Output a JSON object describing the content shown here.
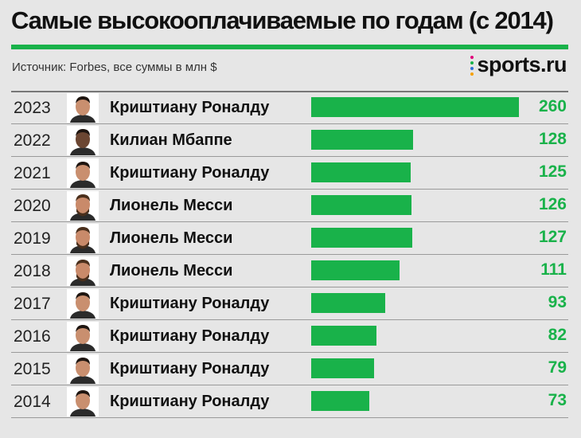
{
  "header": {
    "title": "Самые высокооплачиваемые по годам (с 2014)",
    "source": "Источник: Forbes, все суммы в млн $",
    "brand": "sports.ru"
  },
  "colors": {
    "accent": "#19b24a",
    "background": "#e6e6e6",
    "brand_dots": [
      "#e0007a",
      "#19b24a",
      "#2e6fd8",
      "#f5a000"
    ]
  },
  "chart_data": {
    "type": "bar",
    "orientation": "horizontal",
    "xlim": [
      0,
      260
    ],
    "rows": [
      {
        "year": "2023",
        "player": "Криштиану Роналду",
        "value": 260
      },
      {
        "year": "2022",
        "player": "Килиан Мбаппе",
        "value": 128
      },
      {
        "year": "2021",
        "player": "Криштиану Роналду",
        "value": 125
      },
      {
        "year": "2020",
        "player": "Лионель Месси",
        "value": 126
      },
      {
        "year": "2019",
        "player": "Лионель Месси",
        "value": 127
      },
      {
        "year": "2018",
        "player": "Лионель Месси",
        "value": 111
      },
      {
        "year": "2017",
        "player": "Криштиану Роналду",
        "value": 93
      },
      {
        "year": "2016",
        "player": "Криштиану Роналду",
        "value": 82
      },
      {
        "year": "2015",
        "player": "Криштиану Роналду",
        "value": 79
      },
      {
        "year": "2014",
        "player": "Криштиану Роналду",
        "value": 73
      }
    ]
  }
}
